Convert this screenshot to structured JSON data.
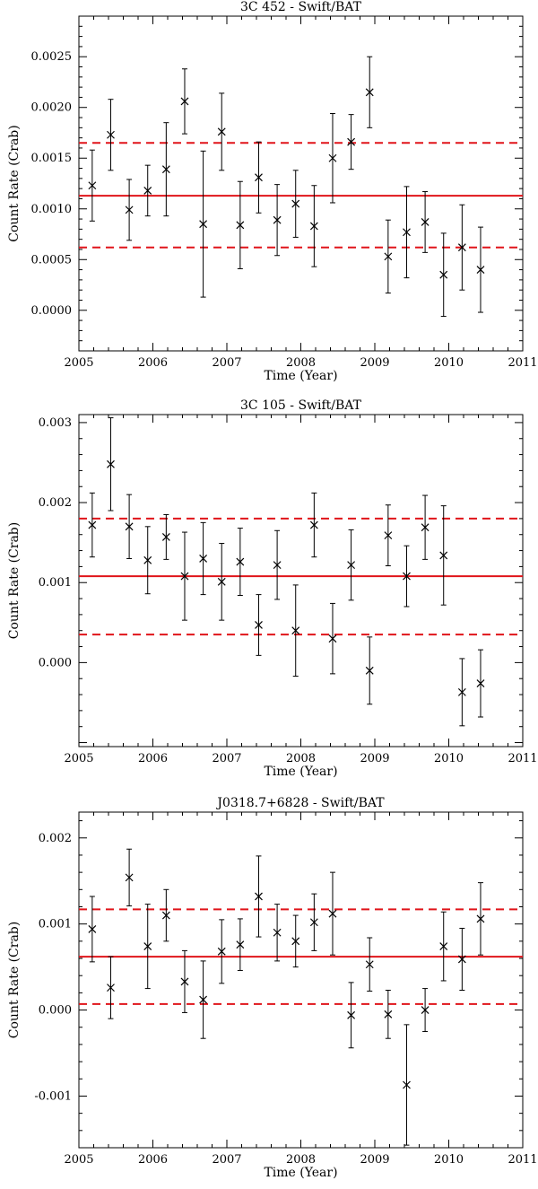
{
  "chart_data": [
    {
      "type": "scatter",
      "title": "3C 452 - Swift/BAT",
      "xlabel": "Time (Year)",
      "ylabel": "Count Rate (Crab)",
      "xlim": [
        2005,
        2011
      ],
      "ylim": [
        -0.0004,
        0.0029
      ],
      "x_ticks": [
        2005,
        2006,
        2007,
        2008,
        2009,
        2010,
        2011
      ],
      "y_ticks": [
        0.0,
        0.0005,
        0.001,
        0.0015,
        0.002,
        0.0025
      ],
      "y_tick_labels": [
        "0.0000",
        "0.0005",
        "0.0010",
        "0.0015",
        "0.0020",
        "0.0025"
      ],
      "mean": 0.00113,
      "band": [
        0.00062,
        0.00165
      ],
      "grid": false,
      "points": [
        {
          "x": 2005.18,
          "y": 0.00123,
          "err": 0.00035
        },
        {
          "x": 2005.43,
          "y": 0.00173,
          "err": 0.00035
        },
        {
          "x": 2005.68,
          "y": 0.00099,
          "err": 0.0003
        },
        {
          "x": 2005.93,
          "y": 0.00118,
          "err": 0.00025
        },
        {
          "x": 2006.18,
          "y": 0.00139,
          "err": 0.00046
        },
        {
          "x": 2006.43,
          "y": 0.00206,
          "err": 0.00032
        },
        {
          "x": 2006.68,
          "y": 0.00085,
          "err": 0.00072
        },
        {
          "x": 2006.93,
          "y": 0.00176,
          "err": 0.00038
        },
        {
          "x": 2007.18,
          "y": 0.00084,
          "err": 0.00043
        },
        {
          "x": 2007.43,
          "y": 0.00131,
          "err": 0.00035
        },
        {
          "x": 2007.68,
          "y": 0.00089,
          "err": 0.00035
        },
        {
          "x": 2007.93,
          "y": 0.00105,
          "err": 0.00033
        },
        {
          "x": 2008.18,
          "y": 0.00083,
          "err": 0.0004
        },
        {
          "x": 2008.43,
          "y": 0.0015,
          "err": 0.00044
        },
        {
          "x": 2008.68,
          "y": 0.00166,
          "err": 0.00027
        },
        {
          "x": 2008.93,
          "y": 0.00215,
          "err": 0.00035
        },
        {
          "x": 2009.18,
          "y": 0.00053,
          "err": 0.00036
        },
        {
          "x": 2009.43,
          "y": 0.00077,
          "err": 0.00045
        },
        {
          "x": 2009.68,
          "y": 0.00087,
          "err": 0.0003
        },
        {
          "x": 2009.93,
          "y": 0.00035,
          "err": 0.00041
        },
        {
          "x": 2010.18,
          "y": 0.00062,
          "err": 0.00042
        },
        {
          "x": 2010.43,
          "y": 0.0004,
          "err": 0.00042
        }
      ]
    },
    {
      "type": "scatter",
      "title": "3C 105 - Swift/BAT",
      "xlabel": "Time (Year)",
      "ylabel": "Count Rate (Crab)",
      "xlim": [
        2005,
        2011
      ],
      "ylim": [
        -0.00105,
        0.0031
      ],
      "x_ticks": [
        2005,
        2006,
        2007,
        2008,
        2009,
        2010,
        2011
      ],
      "y_ticks": [
        0.0,
        0.001,
        0.002,
        0.003
      ],
      "y_tick_labels": [
        "0.000",
        "0.001",
        "0.002",
        "0.003"
      ],
      "mean": 0.00108,
      "band": [
        0.00035,
        0.0018
      ],
      "grid": false,
      "points": [
        {
          "x": 2005.18,
          "y": 0.00172,
          "err": 0.0004
        },
        {
          "x": 2005.43,
          "y": 0.00248,
          "err": 0.00058
        },
        {
          "x": 2005.68,
          "y": 0.0017,
          "err": 0.0004
        },
        {
          "x": 2005.93,
          "y": 0.00128,
          "err": 0.00042
        },
        {
          "x": 2006.18,
          "y": 0.00157,
          "err": 0.00028
        },
        {
          "x": 2006.43,
          "y": 0.00108,
          "err": 0.00055
        },
        {
          "x": 2006.68,
          "y": 0.0013,
          "err": 0.00045
        },
        {
          "x": 2006.93,
          "y": 0.00101,
          "err": 0.00048
        },
        {
          "x": 2007.18,
          "y": 0.00126,
          "err": 0.00042
        },
        {
          "x": 2007.43,
          "y": 0.00047,
          "err": 0.00038
        },
        {
          "x": 2007.68,
          "y": 0.00122,
          "err": 0.00043
        },
        {
          "x": 2007.93,
          "y": 0.0004,
          "err": 0.00057
        },
        {
          "x": 2008.18,
          "y": 0.00172,
          "err": 0.0004
        },
        {
          "x": 2008.43,
          "y": 0.0003,
          "err": 0.00044
        },
        {
          "x": 2008.68,
          "y": 0.00122,
          "err": 0.00044
        },
        {
          "x": 2008.93,
          "y": -0.0001,
          "err": 0.00042
        },
        {
          "x": 2009.18,
          "y": 0.00159,
          "err": 0.00038
        },
        {
          "x": 2009.43,
          "y": 0.00108,
          "err": 0.00038
        },
        {
          "x": 2009.68,
          "y": 0.00169,
          "err": 0.0004
        },
        {
          "x": 2009.93,
          "y": 0.00134,
          "err": 0.00062
        },
        {
          "x": 2010.18,
          "y": -0.00037,
          "err": 0.00042
        },
        {
          "x": 2010.43,
          "y": -0.00026,
          "err": 0.00042
        }
      ]
    },
    {
      "type": "scatter",
      "title": "J0318.7+6828 - Swift/BAT",
      "xlabel": "Time (Year)",
      "ylabel": "Count Rate (Crab)",
      "xlim": [
        2005,
        2011
      ],
      "ylim": [
        -0.0016,
        0.0023
      ],
      "x_ticks": [
        2005,
        2006,
        2007,
        2008,
        2009,
        2010,
        2011
      ],
      "y_ticks": [
        -0.001,
        0.0,
        0.001,
        0.002
      ],
      "y_tick_labels": [
        "-0.001",
        "0.000",
        "0.001",
        "0.002"
      ],
      "mean": 0.00062,
      "band": [
        7e-05,
        0.00117
      ],
      "grid": false,
      "points": [
        {
          "x": 2005.18,
          "y": 0.00094,
          "err": 0.00038
        },
        {
          "x": 2005.43,
          "y": 0.00026,
          "err": 0.00036
        },
        {
          "x": 2005.68,
          "y": 0.00154,
          "err": 0.00033
        },
        {
          "x": 2005.93,
          "y": 0.00074,
          "err": 0.00049
        },
        {
          "x": 2006.18,
          "y": 0.0011,
          "err": 0.0003
        },
        {
          "x": 2006.43,
          "y": 0.00033,
          "err": 0.00036
        },
        {
          "x": 2006.68,
          "y": 0.00012,
          "err": 0.00045
        },
        {
          "x": 2006.93,
          "y": 0.00068,
          "err": 0.00037
        },
        {
          "x": 2007.18,
          "y": 0.00076,
          "err": 0.0003
        },
        {
          "x": 2007.43,
          "y": 0.00132,
          "err": 0.00047
        },
        {
          "x": 2007.68,
          "y": 0.0009,
          "err": 0.00033
        },
        {
          "x": 2007.93,
          "y": 0.0008,
          "err": 0.0003
        },
        {
          "x": 2008.18,
          "y": 0.00102,
          "err": 0.00033
        },
        {
          "x": 2008.43,
          "y": 0.00112,
          "err": 0.00048
        },
        {
          "x": 2008.68,
          "y": -6e-05,
          "err": 0.00038
        },
        {
          "x": 2008.93,
          "y": 0.00053,
          "err": 0.00031
        },
        {
          "x": 2009.18,
          "y": -5e-05,
          "err": 0.00028
        },
        {
          "x": 2009.43,
          "y": -0.00087,
          "err": 0.0007
        },
        {
          "x": 2009.68,
          "y": 0.0,
          "err": 0.00025
        },
        {
          "x": 2009.93,
          "y": 0.00074,
          "err": 0.0004
        },
        {
          "x": 2010.18,
          "y": 0.00059,
          "err": 0.00036
        },
        {
          "x": 2010.43,
          "y": 0.00106,
          "err": 0.00042
        }
      ]
    }
  ]
}
